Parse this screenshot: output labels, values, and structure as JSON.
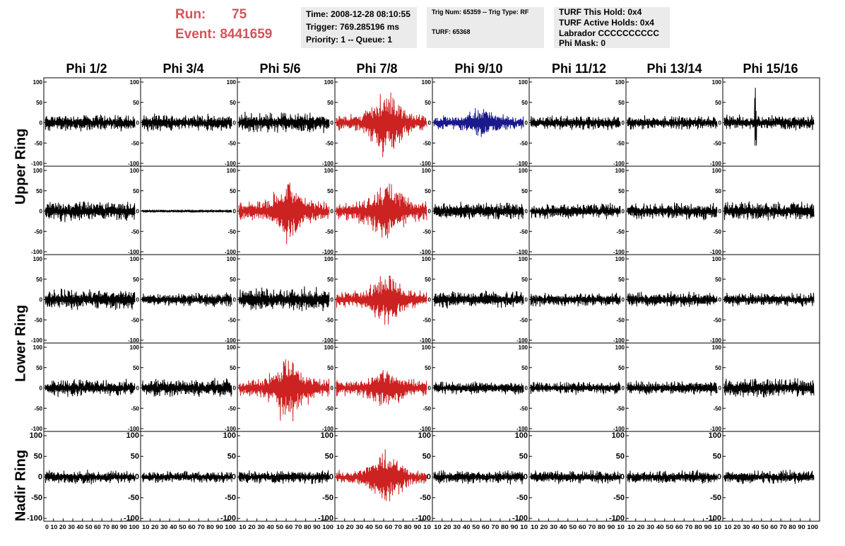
{
  "header": {
    "run_label": "Run:",
    "run_value": "75",
    "event_label": "Event:",
    "event_value": "8441659",
    "time_line": "Time: 2008-12-28 08:10:55",
    "trigger_line": "Trigger: 769.285196 ms",
    "priority_line": "Priority: 1 -- Queue: 1",
    "trig_line": "Trig Num: 65359 -- Trig Type: RF",
    "turf_line": "TURF: 65368",
    "turf_hold": "TURF This Hold: 0x4",
    "turf_active": "TURF Active Holds: 0x4",
    "labrador": "Labrador CCCCCCCCCC",
    "phi_mask": "Phi Mask: 0"
  },
  "colors": {
    "red_header": "#d2555a",
    "trace_default": "#000000",
    "trace_red": "#cc2222",
    "trace_blue": "#1a1a8c",
    "infobox_bg": "#ebebeb"
  },
  "chart_data": {
    "type": "line",
    "title": "",
    "columns": [
      "Phi 1/2",
      "Phi 3/4",
      "Phi 5/6",
      "Phi 7/8",
      "Phi 9/10",
      "Phi 11/12",
      "Phi 13/14",
      "Phi 15/16"
    ],
    "rows": [
      "Upper Ring",
      "Lower Ring",
      "Nadir Ring"
    ],
    "ylim": [
      -100,
      100
    ],
    "xlim": [
      0,
      100
    ],
    "yticks": [
      "100",
      "50",
      "0",
      "-50",
      "-100"
    ],
    "xticks": [
      "0",
      "10",
      "20",
      "30",
      "40",
      "50",
      "60",
      "70",
      "80",
      "90",
      "100"
    ],
    "x_tick_strip": [
      "0 10 20 30 40 50 60 70 80 90 100",
      "10 20 30 40 50 60 70 80 90 100",
      "10 20 30 40 50 60 70 80 90 100",
      "10 20 30 40 50 60 70 80 90 10",
      "10 20 30 40 50 60 70 80 90 10",
      "10 20 30 40 50 60 70 80 90 10",
      "10 20 30 40 50 60 70 80 90 10",
      "10 20 30 40 50 60 70 80 90 100"
    ],
    "panels": [
      {
        "row": 0,
        "col": 0,
        "color": "black",
        "amp": 18,
        "burst": 0
      },
      {
        "row": 0,
        "col": 1,
        "color": "black",
        "amp": 18,
        "burst": 0
      },
      {
        "row": 0,
        "col": 2,
        "color": "black",
        "amp": 22,
        "burst": 0
      },
      {
        "row": 0,
        "col": 3,
        "color": "red",
        "amp": 18,
        "burst": 70
      },
      {
        "row": 0,
        "col": 4,
        "color": "blue",
        "amp": 14,
        "burst": 24
      },
      {
        "row": 0,
        "col": 5,
        "color": "black",
        "amp": 15,
        "burst": 0
      },
      {
        "row": 0,
        "col": 6,
        "color": "black",
        "amp": 15,
        "burst": 0
      },
      {
        "row": 0,
        "col": 7,
        "color": "black",
        "amp": 16,
        "burst": 0,
        "spike": 95
      },
      {
        "row": 1,
        "col": 0,
        "color": "black",
        "amp": 22,
        "burst": 0
      },
      {
        "row": 1,
        "col": 1,
        "color": "black",
        "amp": 3,
        "burst": 0
      },
      {
        "row": 1,
        "col": 2,
        "color": "red",
        "amp": 20,
        "burst": 60
      },
      {
        "row": 1,
        "col": 3,
        "color": "red",
        "amp": 22,
        "burst": 60
      },
      {
        "row": 1,
        "col": 4,
        "color": "black",
        "amp": 18,
        "burst": 0
      },
      {
        "row": 1,
        "col": 5,
        "color": "black",
        "amp": 16,
        "burst": 0
      },
      {
        "row": 1,
        "col": 6,
        "color": "black",
        "amp": 18,
        "burst": 0
      },
      {
        "row": 1,
        "col": 7,
        "color": "black",
        "amp": 20,
        "burst": 0
      },
      {
        "row": 2,
        "col": 0,
        "color": "black",
        "amp": 22,
        "burst": 0
      },
      {
        "row": 2,
        "col": 1,
        "color": "black",
        "amp": 15,
        "burst": 0
      },
      {
        "row": 2,
        "col": 2,
        "color": "black",
        "amp": 25,
        "burst": 0
      },
      {
        "row": 2,
        "col": 3,
        "color": "red",
        "amp": 18,
        "burst": 55
      },
      {
        "row": 2,
        "col": 4,
        "color": "black",
        "amp": 18,
        "burst": 0
      },
      {
        "row": 2,
        "col": 5,
        "color": "black",
        "amp": 14,
        "burst": 0
      },
      {
        "row": 2,
        "col": 6,
        "color": "black",
        "amp": 16,
        "burst": 0
      },
      {
        "row": 2,
        "col": 7,
        "color": "black",
        "amp": 14,
        "burst": 0
      },
      {
        "row": 3,
        "col": 0,
        "color": "black",
        "amp": 18,
        "burst": 0
      },
      {
        "row": 3,
        "col": 1,
        "color": "black",
        "amp": 20,
        "burst": 0
      },
      {
        "row": 3,
        "col": 2,
        "color": "red",
        "amp": 20,
        "burst": 65
      },
      {
        "row": 3,
        "col": 3,
        "color": "red",
        "amp": 18,
        "burst": 35
      },
      {
        "row": 3,
        "col": 4,
        "color": "black",
        "amp": 14,
        "burst": 0
      },
      {
        "row": 3,
        "col": 5,
        "color": "black",
        "amp": 14,
        "burst": 0
      },
      {
        "row": 3,
        "col": 6,
        "color": "black",
        "amp": 15,
        "burst": 0
      },
      {
        "row": 3,
        "col": 7,
        "color": "black",
        "amp": 20,
        "burst": 0
      },
      {
        "row": 4,
        "col": 0,
        "color": "black",
        "amp": 14,
        "burst": 0
      },
      {
        "row": 4,
        "col": 1,
        "color": "black",
        "amp": 12,
        "burst": 0
      },
      {
        "row": 4,
        "col": 2,
        "color": "black",
        "amp": 14,
        "burst": 0
      },
      {
        "row": 4,
        "col": 3,
        "color": "red",
        "amp": 14,
        "burst": 60
      },
      {
        "row": 4,
        "col": 4,
        "color": "black",
        "amp": 14,
        "burst": 0
      },
      {
        "row": 4,
        "col": 5,
        "color": "black",
        "amp": 14,
        "burst": 0
      },
      {
        "row": 4,
        "col": 6,
        "color": "black",
        "amp": 14,
        "burst": 0
      },
      {
        "row": 4,
        "col": 7,
        "color": "black",
        "amp": 14,
        "burst": 0
      }
    ]
  }
}
